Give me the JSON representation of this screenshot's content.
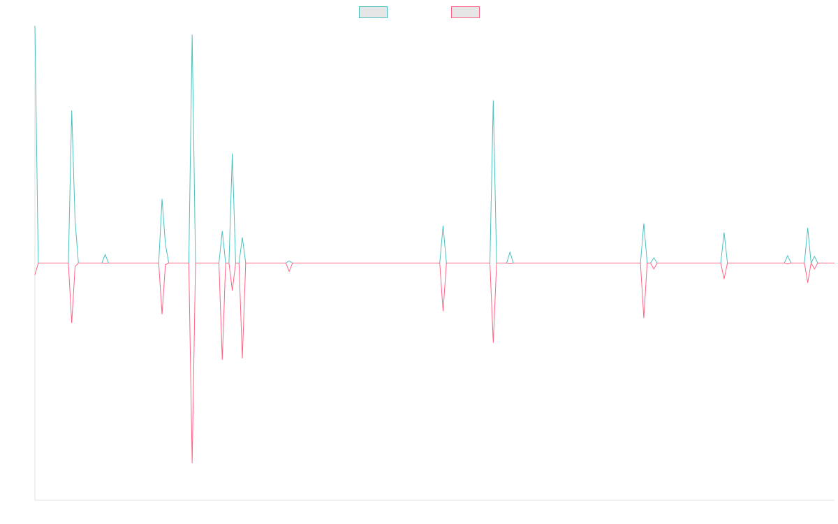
{
  "chart_data": {
    "type": "line",
    "title": "",
    "xlabel": "",
    "ylabel": "",
    "x_count": 240,
    "ylim": [
      -100,
      100
    ],
    "grid": false,
    "legend": "top-center",
    "series": [
      {
        "name": "",
        "color": "#4bc0c0",
        "fill": "#e6e6e6",
        "points": [
          [
            0,
            100
          ],
          [
            1,
            0
          ],
          [
            10,
            0
          ],
          [
            11,
            64.3
          ],
          [
            12,
            18
          ],
          [
            13,
            0
          ],
          [
            20,
            0
          ],
          [
            21,
            3.6
          ],
          [
            22,
            0
          ],
          [
            37,
            0
          ],
          [
            38,
            27
          ],
          [
            39,
            8
          ],
          [
            40,
            0
          ],
          [
            46,
            0
          ],
          [
            47,
            96.3
          ],
          [
            48,
            0
          ],
          [
            55,
            0
          ],
          [
            56,
            13.5
          ],
          [
            57,
            0
          ],
          [
            58,
            0
          ],
          [
            59,
            46.2
          ],
          [
            60,
            0
          ],
          [
            61,
            0
          ],
          [
            62,
            10.8
          ],
          [
            63,
            0
          ],
          [
            75,
            0
          ],
          [
            76,
            0.9
          ],
          [
            77,
            0
          ],
          [
            121,
            0
          ],
          [
            122,
            15.7
          ],
          [
            123,
            0
          ],
          [
            136,
            0
          ],
          [
            137,
            68.6
          ],
          [
            138,
            0
          ],
          [
            141,
            0
          ],
          [
            142,
            4.6
          ],
          [
            143,
            0
          ],
          [
            181,
            0
          ],
          [
            182,
            16.7
          ],
          [
            183,
            0
          ],
          [
            184,
            0
          ],
          [
            185,
            2.2
          ],
          [
            186,
            0
          ],
          [
            205,
            0
          ],
          [
            206,
            12.9
          ],
          [
            207,
            0
          ],
          [
            224,
            0
          ],
          [
            225,
            3.1
          ],
          [
            226,
            0
          ],
          [
            230,
            0
          ],
          [
            231,
            14.8
          ],
          [
            232,
            0
          ],
          [
            233,
            2.8
          ],
          [
            234,
            0
          ],
          [
            239,
            0
          ]
        ]
      },
      {
        "name": "",
        "color": "#ff6384",
        "fill": "#e6e6e6",
        "points": [
          [
            0,
            -5
          ],
          [
            1,
            0
          ],
          [
            10,
            0
          ],
          [
            11,
            -25.3
          ],
          [
            12,
            -1.5
          ],
          [
            13,
            0
          ],
          [
            20,
            0
          ],
          [
            21,
            -0.2
          ],
          [
            22,
            0
          ],
          [
            37,
            0
          ],
          [
            38,
            -21.6
          ],
          [
            39,
            -0.7
          ],
          [
            40,
            0
          ],
          [
            46,
            0
          ],
          [
            47,
            -84.4
          ],
          [
            48,
            0
          ],
          [
            55,
            0
          ],
          [
            56,
            -40.8
          ],
          [
            57,
            0
          ],
          [
            58,
            0
          ],
          [
            59,
            -11.6
          ],
          [
            60,
            0
          ],
          [
            61,
            0
          ],
          [
            62,
            -40.2
          ],
          [
            63,
            0
          ],
          [
            75,
            0
          ],
          [
            76,
            -3.5
          ],
          [
            77,
            0
          ],
          [
            121,
            0
          ],
          [
            122,
            -20.3
          ],
          [
            123,
            0
          ],
          [
            136,
            0
          ],
          [
            137,
            -33.6
          ],
          [
            138,
            0
          ],
          [
            141,
            0
          ],
          [
            142,
            -0.3
          ],
          [
            143,
            0
          ],
          [
            181,
            0
          ],
          [
            182,
            -23.2
          ],
          [
            183,
            0
          ],
          [
            184,
            0
          ],
          [
            185,
            -2.5
          ],
          [
            186,
            0
          ],
          [
            205,
            0
          ],
          [
            206,
            -6.7
          ],
          [
            207,
            0
          ],
          [
            224,
            0
          ],
          [
            225,
            -0.4
          ],
          [
            226,
            0
          ],
          [
            230,
            0
          ],
          [
            231,
            -8.3
          ],
          [
            232,
            0
          ],
          [
            233,
            -2.5
          ],
          [
            234,
            0
          ],
          [
            239,
            0
          ]
        ]
      }
    ]
  }
}
